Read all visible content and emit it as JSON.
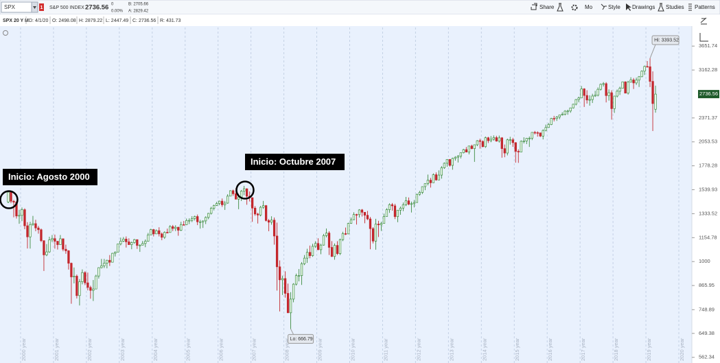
{
  "toolbar": {
    "symbol": "SPX",
    "badge": "1",
    "description": "S&P 500 INDEX",
    "change": "0",
    "change_pct": "0.00%",
    "bid": "B: 2705.66",
    "ask": "A: 2829.42",
    "buttons": [
      "Share",
      "Mo",
      "Style",
      "Drawings",
      "Studies",
      "Patterns"
    ]
  },
  "info_bar": {
    "label": "SPX 20 Y M",
    "date": "D: 4/1/20",
    "o_label": "O:",
    "h_label": "H:",
    "l_label": "L:",
    "c_label": "C:",
    "r_label": "R:",
    "range": 431.73
  },
  "chart_data": {
    "type": "candlestick",
    "log_scale": true,
    "grid": true,
    "up_color": "#3b8a3e",
    "down_color": "#c3262c",
    "hi_label": "Hi:",
    "lo_label": "Lo:",
    "annotations": [
      "Inicio: Agosto 2000",
      "Inicio: Octubre 2007"
    ],
    "xtick_labels": [
      "2000 year",
      "2001 year",
      "2002 year",
      "2003 year",
      "2004 year",
      "2005 year",
      "2006 year",
      "2007 year",
      "2008 year",
      "2009 year",
      "2010 year",
      "2011 year",
      "2012 year",
      "2013 year",
      "2014 year",
      "2015 year",
      "2016 year",
      "2017 year",
      "2018 year",
      "2019 year",
      "2020 year"
    ],
    "ylim": [
      548,
      4085
    ],
    "yticks": [
      562.34,
      649.38,
      748.89,
      865.95,
      1000,
      1154.78,
      1333.52,
      1539.93,
      1778.28,
      2053.53,
      2371.37,
      3162.28,
      3651.74
    ],
    "open": [
      1431,
      1518,
      1437,
      1429,
      1315,
      1320,
      1366,
      1240,
      1160,
      1249,
      1256,
      1224,
      1211,
      1134,
      1041,
      1060,
      1139,
      1148,
      1130,
      1107,
      1147,
      1077,
      1067,
      990,
      912,
      916,
      815,
      886,
      936,
      880,
      856,
      841,
      848,
      917,
      964,
      975,
      990,
      1008,
      996,
      1051,
      1058,
      1112,
      1131,
      1145,
      1126,
      1107,
      1121,
      1141,
      1102,
      1104,
      1115,
      1130,
      1174,
      1212,
      1181,
      1204,
      1181,
      1157,
      1192,
      1191,
      1234,
      1220,
      1229,
      1207,
      1249,
      1248,
      1280,
      1281,
      1295,
      1311,
      1270,
      1270,
      1277,
      1304,
      1336,
      1378,
      1401,
      1418,
      1438,
      1407,
      1421,
      1482,
      1531,
      1503,
      1455,
      1474,
      1527,
      1549,
      1481,
      1468,
      1379,
      1331,
      1323,
      1386,
      1400,
      1280,
      1267,
      1283,
      1166,
      969,
      896,
      903,
      826,
      735,
      798,
      873,
      919,
      919,
      987,
      1021,
      1057,
      1036,
      1096,
      1115,
      1074,
      1104,
      1169,
      1187,
      1089,
      1031,
      1102,
      1049,
      1141,
      1183,
      1181,
      1258,
      1286,
      1327,
      1326,
      1364,
      1345,
      1321,
      1292,
      1219,
      1131,
      1253,
      1247,
      1258,
      1312,
      1366,
      1408,
      1398,
      1310,
      1362,
      1379,
      1407,
      1441,
      1412,
      1416,
      1426,
      1498,
      1515,
      1569,
      1598,
      1631,
      1606,
      1686,
      1633,
      1682,
      1757,
      1806,
      1848,
      1783,
      1859,
      1872,
      1884,
      1924,
      1960,
      1931,
      2003,
      1972,
      2018,
      2068,
      2059,
      1995,
      2105,
      2068,
      2086,
      2107,
      2063,
      2104,
      1972,
      1920,
      2079,
      2080,
      2044,
      1940,
      1932,
      2060,
      2065,
      2097,
      2099,
      2174,
      2171,
      2168,
      2126,
      2199,
      2239,
      2279,
      2364,
      2363,
      2384,
      2412,
      2423,
      2470,
      2472,
      2519,
      2575,
      2648,
      2674,
      2824,
      2714,
      2641,
      2648,
      2705,
      2718,
      2816,
      2902,
      2914,
      2712,
      2760,
      2507,
      2704,
      2784,
      2834,
      2946,
      2752,
      2942,
      2980,
      2926,
      2977,
      3038,
      3141,
      3231,
      3226,
      2954,
      2498.08
    ],
    "high": [
      1525,
      1531,
      1448,
      1438,
      1365,
      1384,
      1377,
      1267,
      1269,
      1316,
      1286,
      1239,
      1220,
      1135,
      1111,
      1161,
      1173,
      1176,
      1131,
      1173,
      1147,
      1107,
      1071,
      994,
      965,
      925,
      900,
      954,
      944,
      936,
      865,
      895,
      924,
      966,
      1016,
      1016,
      1011,
      1040,
      1054,
      1063,
      1113,
      1155,
      1159,
      1163,
      1150,
      1128,
      1146,
      1141,
      1109,
      1132,
      1142,
      1188,
      1218,
      1217,
      1213,
      1229,
      1191,
      1199,
      1219,
      1245,
      1246,
      1244,
      1233,
      1270,
      1276,
      1295,
      1297,
      1314,
      1318,
      1327,
      1285,
      1280,
      1312,
      1340,
      1390,
      1408,
      1432,
      1442,
      1461,
      1440,
      1499,
      1535,
      1541,
      1556,
      1504,
      1538,
      1576,
      1553,
      1524,
      1471,
      1396,
      1341,
      1397,
      1440,
      1405,
      1292,
      1313,
      1303,
      1264,
      1007,
      919,
      943,
      876,
      832,
      878,
      930,
      956,
      997,
      1040,
      1080,
      1101,
      1113,
      1130,
      1150,
      1113,
      1181,
      1220,
      1200,
      1131,
      1115,
      1130,
      1148,
      1196,
      1227,
      1263,
      1303,
      1345,
      1333,
      1370,
      1371,
      1346,
      1356,
      1307,
      1230,
      1293,
      1278,
      1270,
      1334,
      1378,
      1419,
      1422,
      1415,
      1363,
      1392,
      1426,
      1475,
      1470,
      1434,
      1448,
      1504,
      1530,
      1570,
      1598,
      1687,
      1654,
      1699,
      1709,
      1730,
      1775,
      1814,
      1849,
      1851,
      1867,
      1884,
      1897,
      1925,
      1969,
      1991,
      2006,
      2019,
      2018,
      2075,
      2093,
      2072,
      2120,
      2117,
      2126,
      2135,
      2130,
      2133,
      2113,
      2021,
      2094,
      2117,
      2104,
      2050,
      1963,
      2073,
      2111,
      2103,
      2121,
      2178,
      2193,
      2188,
      2169,
      2214,
      2278,
      2301,
      2372,
      2401,
      2399,
      2418,
      2454,
      2484,
      2491,
      2519,
      2582,
      2657,
      2695,
      2873,
      2835,
      2801,
      2717,
      2742,
      2791,
      2848,
      2916,
      2941,
      2940,
      2815,
      2800,
      2708,
      2814,
      2861,
      2950,
      2954,
      2964,
      3028,
      3014,
      3022,
      3050,
      3156,
      3248,
      3338,
      3393.52,
      3137,
      2879.22
    ],
    "low": [
      1421,
      1420,
      1305,
      1295,
      1255,
      1275,
      1215,
      1082,
      1081,
      1240,
      1200,
      1183,
      1124,
      945,
      1033,
      1054,
      1124,
      1081,
      1075,
      1106,
      1064,
      1048,
      953,
      776,
      877,
      801,
      768,
      872,
      868,
      841,
      800,
      789,
      847,
      903,
      960,
      962,
      960,
      974,
      995,
      1031,
      1059,
      1102,
      1124,
      1088,
      1106,
      1077,
      1113,
      1079,
      1060,
      1102,
      1090,
      1127,
      1173,
      1163,
      1180,
      1163,
      1137,
      1146,
      1188,
      1191,
      1201,
      1201,
      1168,
      1201,
      1245,
      1245,
      1253,
      1268,
      1280,
      1245,
      1219,
      1224,
      1253,
      1290,
      1327,
      1360,
      1397,
      1403,
      1389,
      1364,
      1416,
      1482,
      1484,
      1453,
      1370,
      1439,
      1490,
      1407,
      1435,
      1270,
      1317,
      1257,
      1312,
      1373,
      1272,
      1200,
      1248,
      1107,
      840,
      741,
      818,
      805,
      734,
      666.79,
      783,
      866,
      888,
      869,
      979,
      992,
      1020,
      1029,
      1086,
      1071,
      1045,
      1101,
      1157,
      1040,
      1028,
      1011,
      1040,
      1040,
      1131,
      1173,
      1179,
      1255,
      1283,
      1249,
      1303,
      1311,
      1259,
      1283,
      1077,
      1115,
      1074,
      1159,
      1202,
      1258,
      1312,
      1340,
      1358,
      1291,
      1267,
      1325,
      1354,
      1396,
      1403,
      1343,
      1385,
      1426,
      1485,
      1501,
      1536,
      1581,
      1560,
      1605,
      1627,
      1633,
      1646,
      1746,
      1768,
      1770,
      1737,
      1834,
      1814,
      1859,
      1916,
      1930,
      1905,
      1964,
      1821,
      2001,
      1972,
      1988,
      1981,
      2039,
      2049,
      2068,
      2056,
      2044,
      1867,
      1872,
      1893,
      2020,
      1993,
      1812,
      1810,
      1931,
      2034,
      2026,
      1992,
      2075,
      2147,
      2119,
      2114,
      2084,
      2188,
      2234,
      2271,
      2322,
      2329,
      2353,
      2405,
      2407,
      2417,
      2446,
      2509,
      2557,
      2605,
      2683,
      2533,
      2585,
      2553,
      2594,
      2691,
      2699,
      2796,
      2864,
      2603,
      2631,
      2347,
      2444,
      2682,
      2722,
      2848,
      2750,
      2729,
      2932,
      2822,
      2892,
      2856,
      3028,
      3070,
      3214,
      2855,
      2191.86,
      2447.49
    ],
    "close": [
      1518,
      1437,
      1429,
      1315,
      1320,
      1366,
      1240,
      1160,
      1249,
      1256,
      1224,
      1211,
      1134,
      1041,
      1060,
      1139,
      1148,
      1130,
      1107,
      1147,
      1077,
      1067,
      990,
      912,
      916,
      815,
      886,
      936,
      880,
      856,
      841,
      848,
      917,
      964,
      975,
      990,
      1008,
      996,
      1051,
      1058,
      1112,
      1131,
      1145,
      1126,
      1107,
      1121,
      1141,
      1102,
      1104,
      1115,
      1130,
      1174,
      1212,
      1181,
      1204,
      1181,
      1157,
      1192,
      1191,
      1234,
      1220,
      1229,
      1207,
      1249,
      1248,
      1280,
      1281,
      1295,
      1311,
      1270,
      1270,
      1277,
      1304,
      1336,
      1378,
      1401,
      1418,
      1438,
      1407,
      1421,
      1482,
      1531,
      1503,
      1455,
      1474,
      1527,
      1549,
      1481,
      1468,
      1379,
      1331,
      1323,
      1386,
      1400,
      1280,
      1267,
      1283,
      1166,
      969,
      896,
      903,
      826,
      735,
      798,
      873,
      919,
      919,
      987,
      1021,
      1057,
      1036,
      1096,
      1115,
      1074,
      1104,
      1169,
      1187,
      1089,
      1031,
      1102,
      1049,
      1141,
      1183,
      1181,
      1258,
      1286,
      1327,
      1326,
      1364,
      1345,
      1321,
      1292,
      1219,
      1131,
      1253,
      1247,
      1258,
      1312,
      1366,
      1408,
      1398,
      1310,
      1362,
      1379,
      1407,
      1441,
      1412,
      1416,
      1426,
      1498,
      1515,
      1569,
      1598,
      1631,
      1606,
      1686,
      1633,
      1682,
      1757,
      1806,
      1848,
      1783,
      1859,
      1872,
      1884,
      1924,
      1960,
      1931,
      2003,
      1972,
      2018,
      2068,
      2059,
      1995,
      2105,
      2068,
      2086,
      2107,
      2063,
      2104,
      1972,
      1920,
      2079,
      2080,
      2044,
      1940,
      1932,
      2060,
      2065,
      2097,
      2099,
      2174,
      2171,
      2168,
      2126,
      2199,
      2239,
      2279,
      2364,
      2363,
      2384,
      2412,
      2423,
      2470,
      2472,
      2519,
      2575,
      2648,
      2674,
      2824,
      2714,
      2641,
      2648,
      2705,
      2718,
      2816,
      2902,
      2914,
      2712,
      2760,
      2507,
      2704,
      2784,
      2834,
      2946,
      2752,
      2942,
      2980,
      2926,
      2977,
      3038,
      3141,
      3231,
      3226,
      2954,
      2585,
      2736.56
    ]
  }
}
